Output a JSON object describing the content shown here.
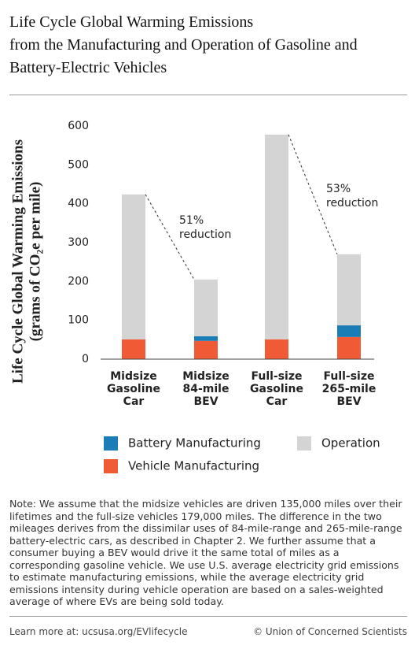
{
  "chart_data": {
    "type": "stacked-bar",
    "title": [
      "Life Cycle Global Warming Emissions",
      "from the Manufacturing and Operation of Gasoline and",
      "Battery-Electric Vehicles"
    ],
    "y_label": [
      "Life Cycle Global Warming Emissions",
      "(grams of CO₂e per mile)"
    ],
    "categories": [
      [
        "Midsize",
        "Gasoline",
        "Car"
      ],
      [
        "Midsize",
        "84-mile",
        "BEV"
      ],
      [
        "Full-size",
        "Gasoline",
        "Car"
      ],
      [
        "Full-size",
        "265-mile",
        "BEV"
      ]
    ],
    "series": [
      {
        "name": "Vehicle Manufacturing",
        "color": "#f05a35",
        "values": [
          51,
          47,
          51,
          57
        ]
      },
      {
        "name": "Battery Manufacturing",
        "color": "#1b7db5",
        "values": [
          0,
          12,
          0,
          30
        ]
      },
      {
        "name": "Operation",
        "color": "#d4d4d4",
        "values": [
          373,
          146,
          527,
          183
        ]
      }
    ],
    "annotations": [
      [
        "51%",
        "reduction"
      ],
      [
        "53%",
        "reduction"
      ]
    ],
    "ylim": [
      0,
      600
    ],
    "yticks": [
      0,
      100,
      200,
      300,
      400,
      500,
      600
    ]
  },
  "note": "Note: We assume that the midsize vehicles are driven 135,000 miles over their lifetimes and the full-size vehicles 179,000 miles. The difference in the two mileages derives from the dissimilar uses of 84-mile-range and 265-mile-range battery-electric cars, as described in Chapter 2. We further assume that a consumer buying a BEV would drive it the same total of miles as a corresponding gasoline vehicle. We use U.S. average electricity grid emissions to estimate manufacturing emissions, while the average electricity grid emissions intensity during vehicle operation are based on a sales-weighted average of where EVs are being sold today.",
  "footer": {
    "left": "Learn more at: ucsusa.org/EVlifecycle",
    "right": "© Union of Concerned Scientists"
  }
}
